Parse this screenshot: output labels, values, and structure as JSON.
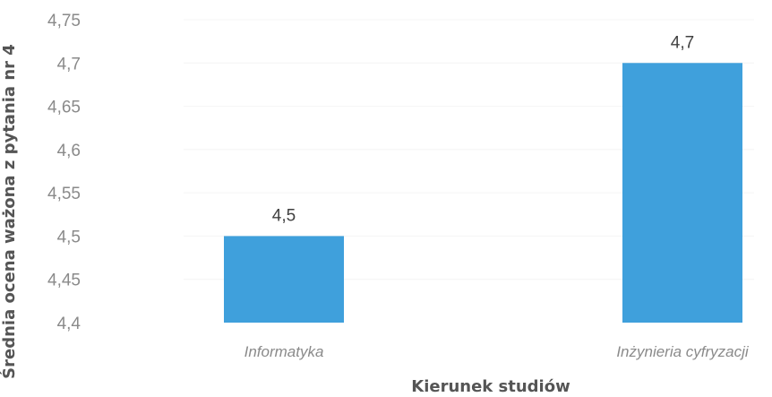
{
  "chart_data": {
    "type": "bar",
    "categories": [
      "Informatyka",
      "Inżynieria cyfryzacji"
    ],
    "values": [
      4.5,
      4.7
    ],
    "data_labels": [
      "4,5",
      "4,7"
    ],
    "xlabel": "Kierunek studiów",
    "ylabel": "Średnia ocena ważona z pytania nr 4",
    "ylim": [
      4.4,
      4.75
    ],
    "yticks": [
      4.4,
      4.45,
      4.5,
      4.55,
      4.6,
      4.65,
      4.7,
      4.75
    ],
    "ytick_labels": [
      "4,4",
      "4,45",
      "4,5",
      "4,55",
      "4,6",
      "4,65",
      "4,7",
      "4,75"
    ],
    "grid": true,
    "legend": "none",
    "bar_color": "#3fa0dc"
  }
}
